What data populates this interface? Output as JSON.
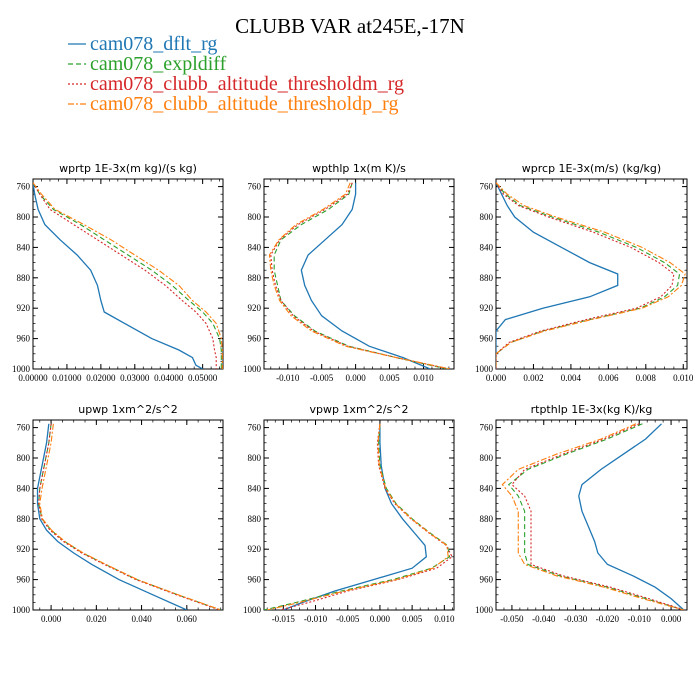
{
  "figure": {
    "title": "CLUBB VAR at245E,-17N"
  },
  "legend": [
    {
      "name": "cam078_dflt_rg",
      "color": "#1f77b4",
      "dash": "solid"
    },
    {
      "name": "cam078_expldiff",
      "color": "#2ca02c",
      "dash": "dash"
    },
    {
      "name": "cam078_clubb_altitude_thresholdm_rg",
      "color": "#d62728",
      "dash": "dot"
    },
    {
      "name": "cam078_clubb_altitude_thresholdp_rg",
      "color": "#ff7f0e",
      "dash": "dashdot"
    }
  ],
  "chart_data": [
    {
      "type": "line",
      "title": "wprtp  1E-3x(m kg)/(s kg)",
      "xlim": [
        0,
        0.056
      ],
      "ylim": [
        1000,
        750
      ],
      "xticks": [
        "0.00000",
        "0.01000",
        "0.02000",
        "0.03000",
        "0.04000",
        "0.05000"
      ],
      "xtick_values": [
        0,
        0.01,
        0.02,
        0.03,
        0.04,
        0.05
      ],
      "yticks": [
        "760",
        "800",
        "840",
        "880",
        "920",
        "960",
        "1000"
      ],
      "ytick_values": [
        760,
        800,
        840,
        880,
        920,
        960,
        1000
      ],
      "y": [
        755,
        770,
        790,
        810,
        830,
        850,
        870,
        890,
        910,
        925,
        940,
        960,
        975,
        985,
        995,
        1000
      ],
      "series": [
        {
          "x": [
            0.0,
            0.0005,
            0.0015,
            0.0035,
            0.008,
            0.013,
            0.017,
            0.019,
            0.02,
            0.021,
            0.027,
            0.035,
            0.043,
            0.047,
            0.048,
            0.05
          ]
        },
        {
          "x": [
            0.0,
            0.002,
            0.006,
            0.014,
            0.021,
            0.028,
            0.035,
            0.041,
            0.046,
            0.05,
            0.053,
            0.055,
            0.0555,
            0.0555,
            0.0555,
            0.0555
          ]
        },
        {
          "x": [
            0.0,
            0.002,
            0.005,
            0.012,
            0.019,
            0.026,
            0.033,
            0.039,
            0.044,
            0.048,
            0.051,
            0.053,
            0.0535,
            0.054,
            0.054,
            0.054
          ]
        },
        {
          "x": [
            0.0,
            0.0025,
            0.0065,
            0.015,
            0.023,
            0.03,
            0.037,
            0.043,
            0.047,
            0.051,
            0.054,
            0.0555,
            0.0558,
            0.0558,
            0.0558,
            0.0558
          ]
        }
      ]
    },
    {
      "type": "line",
      "title": "wpthlp  1x(m K)/s",
      "xlim": [
        -0.0135,
        0.0145
      ],
      "ylim": [
        1000,
        750
      ],
      "xticks": [
        "-0.010",
        "-0.005",
        "0.000",
        "0.005",
        "0.010"
      ],
      "xtick_values": [
        -0.01,
        -0.005,
        0,
        0.005,
        0.01
      ],
      "yticks": [
        "760",
        "800",
        "840",
        "880",
        "920",
        "960",
        "1000"
      ],
      "ytick_values": [
        760,
        800,
        840,
        880,
        920,
        960,
        1000
      ],
      "y": [
        755,
        770,
        790,
        810,
        830,
        850,
        870,
        890,
        910,
        930,
        950,
        970,
        985,
        1000
      ],
      "series": [
        {
          "x": [
            0.0,
            0.0,
            -0.0005,
            -0.002,
            -0.0045,
            -0.007,
            -0.008,
            -0.0075,
            -0.0065,
            -0.005,
            -0.002,
            0.002,
            0.007,
            0.011
          ]
        },
        {
          "x": [
            -0.0005,
            -0.001,
            -0.004,
            -0.008,
            -0.011,
            -0.012,
            -0.012,
            -0.0115,
            -0.011,
            -0.009,
            -0.006,
            -0.001,
            0.006,
            0.0135
          ]
        },
        {
          "x": [
            -0.0005,
            -0.0012,
            -0.0045,
            -0.0085,
            -0.0112,
            -0.0125,
            -0.0123,
            -0.0118,
            -0.011,
            -0.0092,
            -0.0062,
            -0.0012,
            0.006,
            0.0138
          ]
        },
        {
          "x": [
            -0.0008,
            -0.0015,
            -0.0048,
            -0.0088,
            -0.0113,
            -0.0127,
            -0.0125,
            -0.012,
            -0.0112,
            -0.0095,
            -0.0065,
            -0.0015,
            0.006,
            0.014
          ]
        }
      ]
    },
    {
      "type": "line",
      "title": "wprcp  1E-3x(m/s) (kg/kg)",
      "xlim": [
        0,
        0.0102
      ],
      "ylim": [
        1000,
        750
      ],
      "xticks": [
        "0.000",
        "0.002",
        "0.004",
        "0.006",
        "0.008",
        "0.010"
      ],
      "xtick_values": [
        0,
        0.002,
        0.004,
        0.006,
        0.008,
        0.01
      ],
      "yticks": [
        "760",
        "800",
        "840",
        "880",
        "920",
        "960",
        "1000"
      ],
      "ytick_values": [
        760,
        800,
        840,
        880,
        920,
        960,
        1000
      ],
      "y": [
        755,
        770,
        785,
        800,
        820,
        840,
        860,
        875,
        890,
        905,
        920,
        935,
        950,
        965,
        980,
        1000
      ],
      "series": [
        {
          "x": [
            0.0,
            0.0003,
            0.0006,
            0.001,
            0.002,
            0.0035,
            0.005,
            0.0065,
            0.0065,
            0.005,
            0.0025,
            0.0005,
            0.0,
            0.0,
            0.0,
            0.0
          ]
        },
        {
          "x": [
            0.0,
            0.0005,
            0.0013,
            0.003,
            0.0055,
            0.0075,
            0.009,
            0.0098,
            0.0097,
            0.009,
            0.0077,
            0.005,
            0.0025,
            0.0008,
            0.0,
            0.0
          ]
        },
        {
          "x": [
            0.0,
            0.0004,
            0.0012,
            0.0028,
            0.0052,
            0.0072,
            0.0087,
            0.0095,
            0.0094,
            0.0088,
            0.0075,
            0.0048,
            0.0024,
            0.0007,
            0.0,
            0.0
          ]
        },
        {
          "x": [
            0.0,
            0.0006,
            0.0015,
            0.0032,
            0.0058,
            0.0078,
            0.0093,
            0.0101,
            0.0099,
            0.0092,
            0.0078,
            0.0051,
            0.0026,
            0.0008,
            0.0,
            0.0
          ]
        }
      ]
    },
    {
      "type": "line",
      "title": "upwp  1xm^2/s^2",
      "xlim": [
        -0.008,
        0.076
      ],
      "ylim": [
        1000,
        750
      ],
      "xticks": [
        "0.000",
        "0.020",
        "0.040",
        "0.060"
      ],
      "xtick_values": [
        0,
        0.02,
        0.04,
        0.06
      ],
      "yticks": [
        "760",
        "800",
        "840",
        "880",
        "920",
        "960",
        "1000"
      ],
      "ytick_values": [
        760,
        800,
        840,
        880,
        920,
        960,
        1000
      ],
      "y": [
        755,
        780,
        810,
        840,
        860,
        880,
        895,
        910,
        925,
        940,
        960,
        980,
        1000
      ],
      "series": [
        {
          "x": [
            -0.001,
            -0.002,
            -0.004,
            -0.006,
            -0.006,
            -0.005,
            -0.002,
            0.003,
            0.01,
            0.018,
            0.03,
            0.045,
            0.06
          ]
        },
        {
          "x": [
            0.0,
            -0.001,
            -0.003,
            -0.005,
            -0.0055,
            -0.004,
            0.0,
            0.006,
            0.014,
            0.024,
            0.038,
            0.056,
            0.075
          ]
        },
        {
          "x": [
            0.0,
            -0.001,
            -0.003,
            -0.005,
            -0.0055,
            -0.0042,
            -0.0005,
            0.0055,
            0.0135,
            0.0235,
            0.0375,
            0.0555,
            0.0745
          ]
        },
        {
          "x": [
            0.001,
            0.0,
            -0.002,
            -0.004,
            -0.005,
            -0.0038,
            0.0002,
            0.0062,
            0.0142,
            0.0242,
            0.0382,
            0.0562,
            0.0752
          ]
        }
      ]
    },
    {
      "type": "line",
      "title": "vpwp  1xm^2/s^2",
      "xlim": [
        -0.018,
        0.0115
      ],
      "ylim": [
        1000,
        750
      ],
      "xticks": [
        "-0.015",
        "-0.010",
        "-0.005",
        "0.000",
        "0.005",
        "0.010"
      ],
      "xtick_values": [
        -0.015,
        -0.01,
        -0.005,
        0,
        0.005,
        0.01
      ],
      "yticks": [
        "760",
        "800",
        "840",
        "880",
        "920",
        "960",
        "1000"
      ],
      "ytick_values": [
        760,
        800,
        840,
        880,
        920,
        960,
        1000
      ],
      "y": [
        755,
        780,
        810,
        840,
        860,
        880,
        900,
        915,
        930,
        945,
        960,
        975,
        990,
        1000
      ],
      "series": [
        {
          "x": [
            0.0,
            0.0,
            0.0002,
            0.0008,
            0.0018,
            0.0035,
            0.0055,
            0.007,
            0.0072,
            0.005,
            -0.001,
            -0.007,
            -0.012,
            -0.015
          ]
        },
        {
          "x": [
            0.0,
            -0.0002,
            0.0,
            0.001,
            0.0025,
            0.005,
            0.008,
            0.0105,
            0.0108,
            0.008,
            0.002,
            -0.006,
            -0.013,
            -0.018
          ]
        },
        {
          "x": [
            0.0,
            -0.0004,
            -0.0002,
            0.0008,
            0.0023,
            0.0048,
            0.0078,
            0.0103,
            0.0112,
            0.0088,
            0.0028,
            -0.005,
            -0.011,
            -0.0155
          ]
        },
        {
          "x": [
            0.0,
            -0.0003,
            -0.0001,
            0.0009,
            0.0024,
            0.0049,
            0.0079,
            0.0104,
            0.0106,
            0.0082,
            0.0025,
            -0.0055,
            -0.0125,
            -0.0175
          ]
        }
      ]
    },
    {
      "type": "line",
      "title": "rtpthlp  1E-3x(kg K)/kg",
      "xlim": [
        -0.055,
        0.005
      ],
      "ylim": [
        1000,
        750
      ],
      "xticks": [
        "-0.050",
        "-0.040",
        "-0.030",
        "-0.020",
        "-0.010",
        "0.000"
      ],
      "xtick_values": [
        -0.05,
        -0.04,
        -0.03,
        -0.02,
        -0.01,
        0
      ],
      "yticks": [
        "760",
        "800",
        "840",
        "880",
        "920",
        "960",
        "1000"
      ],
      "ytick_values": [
        760,
        800,
        840,
        880,
        920,
        960,
        1000
      ],
      "y": [
        755,
        775,
        795,
        815,
        835,
        850,
        870,
        890,
        910,
        925,
        940,
        955,
        970,
        985,
        1000
      ],
      "series": [
        {
          "x": [
            -0.003,
            -0.008,
            -0.015,
            -0.022,
            -0.028,
            -0.029,
            -0.028,
            -0.026,
            -0.024,
            -0.023,
            -0.02,
            -0.012,
            -0.005,
            0.0,
            0.004
          ]
        },
        {
          "x": [
            -0.009,
            -0.02,
            -0.033,
            -0.045,
            -0.051,
            -0.048,
            -0.046,
            -0.046,
            -0.046,
            -0.046,
            -0.045,
            -0.035,
            -0.02,
            -0.008,
            0.004
          ]
        },
        {
          "x": [
            -0.01,
            -0.021,
            -0.034,
            -0.046,
            -0.05,
            -0.046,
            -0.044,
            -0.044,
            -0.044,
            -0.044,
            -0.044,
            -0.034,
            -0.019,
            -0.007,
            0.004
          ]
        },
        {
          "x": [
            -0.011,
            -0.022,
            -0.036,
            -0.048,
            -0.053,
            -0.05,
            -0.048,
            -0.048,
            -0.048,
            -0.048,
            -0.046,
            -0.036,
            -0.021,
            -0.009,
            0.004
          ]
        }
      ]
    }
  ]
}
